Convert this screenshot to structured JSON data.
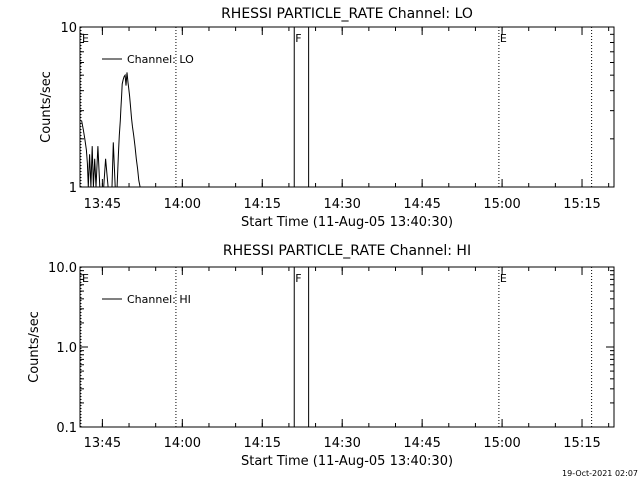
{
  "footer": {
    "timestamp": "19-Oct-2021 02:07"
  },
  "chart_data": [
    {
      "type": "line",
      "title": "RHESSI PARTICLE_RATE Channel: LO",
      "xlabel": "Start Time (11-Aug-05 13:40:30)",
      "ylabel": "Counts/sec",
      "xlim": [
        13.68,
        15.35
      ],
      "ylim": [
        1,
        10
      ],
      "yscale": "log",
      "x_ticks": [
        13.75,
        14.0,
        14.25,
        14.5,
        14.75,
        15.0,
        15.25
      ],
      "x_tick_labels": [
        "13:45",
        "14:00",
        "14:15",
        "14:30",
        "14:45",
        "15:00",
        "15:15"
      ],
      "y_ticks": [
        1,
        10
      ],
      "y_tick_labels": [
        "1",
        "10"
      ],
      "legend": {
        "placement": "top-left",
        "entries": [
          "Channel: LO"
        ]
      },
      "series": [
        {
          "name": "Channel: LO",
          "x": [
            13.685,
            13.69,
            13.695,
            13.7,
            13.703,
            13.706,
            13.71,
            13.714,
            13.718,
            13.722,
            13.726,
            13.73,
            13.736,
            13.742,
            13.748,
            13.754,
            13.76,
            13.768,
            13.774,
            13.78,
            13.784,
            13.79,
            13.796,
            13.8,
            13.803,
            13.806,
            13.808,
            13.81,
            13.812,
            13.815,
            13.818,
            13.821,
            13.824,
            13.827,
            13.83,
            13.832,
            13.835,
            13.838,
            13.841,
            13.844,
            13.848,
            13.852,
            13.856,
            13.86,
            13.864,
            13.868,
            13.872
          ],
          "y": [
            2.6,
            2.3,
            2.0,
            1.7,
            1.4,
            1.0,
            1.6,
            1.0,
            1.8,
            1.0,
            1.5,
            1.0,
            1.8,
            1.0,
            1.0,
            1.0,
            1.5,
            1.0,
            1.0,
            1.0,
            1.9,
            1.0,
            1.0,
            1.6,
            2.1,
            2.6,
            3.1,
            3.7,
            4.4,
            4.7,
            4.9,
            5.0,
            4.3,
            5.2,
            4.5,
            4.2,
            3.7,
            3.2,
            2.7,
            2.4,
            2.1,
            1.8,
            1.5,
            1.3,
            1.1,
            1.0,
            1.0
          ]
        }
      ],
      "annotations": [
        {
          "label": "E",
          "x": 13.683,
          "style": "dotted"
        },
        {
          "label": "",
          "x": 13.98,
          "style": "dotted"
        },
        {
          "label": "F",
          "x": 14.35,
          "style": "solid"
        },
        {
          "label": "",
          "x": 14.395,
          "style": "solid"
        },
        {
          "label": "E",
          "x": 14.99,
          "style": "dotted"
        },
        {
          "label": "",
          "x": 15.28,
          "style": "dotted"
        }
      ]
    },
    {
      "type": "line",
      "title": "RHESSI PARTICLE_RATE Channel: HI",
      "xlabel": "Start Time (11-Aug-05 13:40:30)",
      "ylabel": "Counts/sec",
      "xlim": [
        13.68,
        15.35
      ],
      "ylim": [
        0.1,
        10
      ],
      "yscale": "log",
      "x_ticks": [
        13.75,
        14.0,
        14.25,
        14.5,
        14.75,
        15.0,
        15.25
      ],
      "x_tick_labels": [
        "13:45",
        "14:00",
        "14:15",
        "14:30",
        "14:45",
        "15:00",
        "15:15"
      ],
      "y_ticks": [
        0.1,
        1,
        10
      ],
      "y_tick_labels": [
        "0.1",
        "1.0",
        "10.0"
      ],
      "legend": {
        "placement": "top-left",
        "entries": [
          "Channel: HI"
        ]
      },
      "series": [
        {
          "name": "Channel: HI",
          "x": [],
          "y": []
        }
      ],
      "annotations": [
        {
          "label": "E",
          "x": 13.683,
          "style": "dotted"
        },
        {
          "label": "",
          "x": 13.98,
          "style": "dotted"
        },
        {
          "label": "F",
          "x": 14.35,
          "style": "solid"
        },
        {
          "label": "",
          "x": 14.395,
          "style": "solid"
        },
        {
          "label": "E",
          "x": 14.99,
          "style": "dotted"
        },
        {
          "label": "",
          "x": 15.28,
          "style": "dotted"
        }
      ]
    }
  ]
}
